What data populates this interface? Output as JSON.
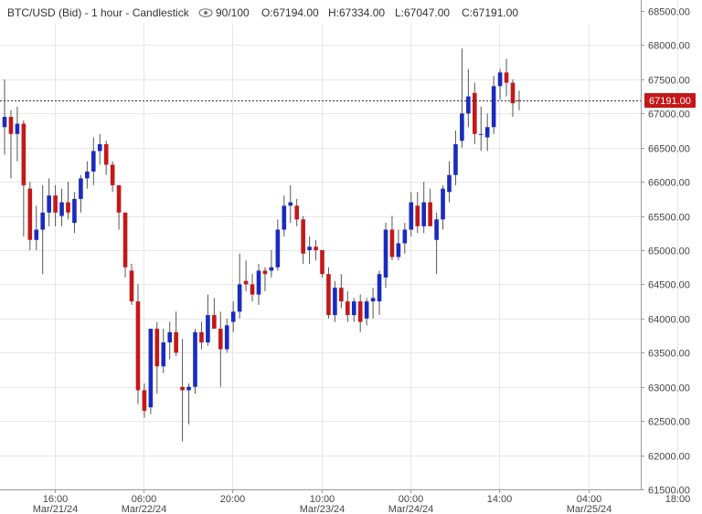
{
  "header": {
    "symbol": "BTC/USD (Bid) - 1 hour - Candlestick",
    "eye_icon": "eye-icon",
    "visibility": "90/100",
    "open": "O:67194.00",
    "high": "H:67334.00",
    "low": "L:67047.00",
    "close": "C:67191.00"
  },
  "current_price_label": "67191.00",
  "colors": {
    "up": "#1a2bbf",
    "down": "#c41818",
    "grid": "#e6e6e6",
    "price_tag": "#c41818",
    "axis_text": "#444444"
  },
  "chart_data": {
    "type": "candlestick",
    "y_axis": {
      "side": "right",
      "ylim": [
        61500,
        68500
      ],
      "ticks": [
        68500,
        68000,
        67500,
        67000,
        66500,
        66000,
        65500,
        65000,
        64500,
        64000,
        63500,
        63000,
        62500,
        62000,
        61500
      ],
      "tick_labels": [
        "68500.00",
        "68000.00",
        "67500.00",
        "67000.00",
        "66500.00",
        "66000.00",
        "65500.00",
        "65000.00",
        "64500.00",
        "64000.00",
        "63500.00",
        "63000.00",
        "62500.00",
        "62000.00",
        "61500.00"
      ]
    },
    "x_axis": {
      "ticks": [
        {
          "time": "16:00",
          "date": "Mar/21/24",
          "index": 4
        },
        {
          "time": "06:00",
          "date": "Mar/22/24",
          "index": 18
        },
        {
          "time": "20:00",
          "date": "",
          "index": 32
        },
        {
          "time": "10:00",
          "date": "Mar/23/24",
          "index": 46
        },
        {
          "time": "00:00",
          "date": "Mar/24/24",
          "index": 60
        },
        {
          "time": "14:00",
          "date": "",
          "index": 74
        },
        {
          "time": "04:00",
          "date": "Mar/25/24",
          "index": 88
        },
        {
          "time": "18:00",
          "date": "",
          "index": 102
        }
      ]
    },
    "current_price": 67191,
    "candles": [
      {
        "o": 66800,
        "h": 67500,
        "l": 66400,
        "c": 66950
      },
      {
        "o": 66950,
        "h": 67050,
        "l": 66050,
        "c": 66700
      },
      {
        "o": 66700,
        "h": 67100,
        "l": 66300,
        "c": 66850
      },
      {
        "o": 66850,
        "h": 66900,
        "l": 65200,
        "c": 65950
      },
      {
        "o": 65900,
        "h": 66000,
        "l": 65000,
        "c": 65150
      },
      {
        "o": 65150,
        "h": 65650,
        "l": 65000,
        "c": 65300
      },
      {
        "o": 65300,
        "h": 65950,
        "l": 64650,
        "c": 65550
      },
      {
        "o": 65550,
        "h": 66050,
        "l": 65350,
        "c": 65800
      },
      {
        "o": 65800,
        "h": 65950,
        "l": 65350,
        "c": 65550
      },
      {
        "o": 65500,
        "h": 65900,
        "l": 65350,
        "c": 65700
      },
      {
        "o": 65700,
        "h": 66000,
        "l": 65450,
        "c": 65550
      },
      {
        "o": 65400,
        "h": 65850,
        "l": 65250,
        "c": 65750
      },
      {
        "o": 65750,
        "h": 66100,
        "l": 65550,
        "c": 66050
      },
      {
        "o": 66050,
        "h": 66300,
        "l": 65900,
        "c": 66150
      },
      {
        "o": 66150,
        "h": 66650,
        "l": 65950,
        "c": 66450
      },
      {
        "o": 66450,
        "h": 66700,
        "l": 66250,
        "c": 66550
      },
      {
        "o": 66550,
        "h": 66600,
        "l": 66100,
        "c": 66250
      },
      {
        "o": 66250,
        "h": 66300,
        "l": 65850,
        "c": 65950
      },
      {
        "o": 65950,
        "h": 65950,
        "l": 65300,
        "c": 65550
      },
      {
        "o": 65550,
        "h": 65550,
        "l": 64600,
        "c": 64750
      },
      {
        "o": 64700,
        "h": 64800,
        "l": 64200,
        "c": 64250
      },
      {
        "o": 64250,
        "h": 64500,
        "l": 62750,
        "c": 62950
      },
      {
        "o": 62950,
        "h": 63050,
        "l": 62550,
        "c": 62650
      },
      {
        "o": 62700,
        "h": 63850,
        "l": 62600,
        "c": 63850
      },
      {
        "o": 63850,
        "h": 63950,
        "l": 62900,
        "c": 63300
      },
      {
        "o": 63300,
        "h": 63850,
        "l": 63200,
        "c": 63650
      },
      {
        "o": 63650,
        "h": 63950,
        "l": 63400,
        "c": 63800
      },
      {
        "o": 63800,
        "h": 64100,
        "l": 63450,
        "c": 63500
      },
      {
        "o": 63000,
        "h": 63700,
        "l": 62200,
        "c": 62950
      },
      {
        "o": 62950,
        "h": 63050,
        "l": 62450,
        "c": 63000
      },
      {
        "o": 63000,
        "h": 63850,
        "l": 62900,
        "c": 63800
      },
      {
        "o": 63800,
        "h": 63950,
        "l": 63550,
        "c": 63650
      },
      {
        "o": 63650,
        "h": 64350,
        "l": 63600,
        "c": 64050
      },
      {
        "o": 64050,
        "h": 64300,
        "l": 63850,
        "c": 63850
      },
      {
        "o": 63850,
        "h": 64100,
        "l": 63000,
        "c": 63550
      },
      {
        "o": 63550,
        "h": 64000,
        "l": 63500,
        "c": 63900
      },
      {
        "o": 63950,
        "h": 64250,
        "l": 63800,
        "c": 64100
      },
      {
        "o": 64100,
        "h": 64950,
        "l": 64000,
        "c": 64500
      },
      {
        "o": 64550,
        "h": 64850,
        "l": 64400,
        "c": 64500
      },
      {
        "o": 64500,
        "h": 64650,
        "l": 64250,
        "c": 64350
      },
      {
        "o": 64350,
        "h": 64800,
        "l": 64200,
        "c": 64700
      },
      {
        "o": 64700,
        "h": 64750,
        "l": 64400,
        "c": 64650
      },
      {
        "o": 64700,
        "h": 65000,
        "l": 64600,
        "c": 64750
      },
      {
        "o": 64750,
        "h": 65450,
        "l": 64700,
        "c": 65300
      },
      {
        "o": 65300,
        "h": 65800,
        "l": 65200,
        "c": 65650
      },
      {
        "o": 65650,
        "h": 65950,
        "l": 65400,
        "c": 65700
      },
      {
        "o": 65650,
        "h": 65750,
        "l": 65350,
        "c": 65450
      },
      {
        "o": 65450,
        "h": 65500,
        "l": 64800,
        "c": 64950
      },
      {
        "o": 65000,
        "h": 65200,
        "l": 64800,
        "c": 65050
      },
      {
        "o": 65050,
        "h": 65150,
        "l": 64850,
        "c": 65000
      },
      {
        "o": 65000,
        "h": 65000,
        "l": 64600,
        "c": 64650
      },
      {
        "o": 64650,
        "h": 64750,
        "l": 64000,
        "c": 64050
      },
      {
        "o": 64050,
        "h": 64550,
        "l": 63950,
        "c": 64450
      },
      {
        "o": 64450,
        "h": 64650,
        "l": 64150,
        "c": 64250
      },
      {
        "o": 64250,
        "h": 64400,
        "l": 63950,
        "c": 64050
      },
      {
        "o": 64050,
        "h": 64300,
        "l": 63950,
        "c": 64250
      },
      {
        "o": 64250,
        "h": 64350,
        "l": 63800,
        "c": 63950
      },
      {
        "o": 64000,
        "h": 64300,
        "l": 63900,
        "c": 64250
      },
      {
        "o": 64250,
        "h": 64450,
        "l": 64000,
        "c": 64300
      },
      {
        "o": 64250,
        "h": 64700,
        "l": 64050,
        "c": 64650
      },
      {
        "o": 64600,
        "h": 65400,
        "l": 64450,
        "c": 65300
      },
      {
        "o": 65300,
        "h": 65500,
        "l": 64850,
        "c": 64900
      },
      {
        "o": 64900,
        "h": 65300,
        "l": 64850,
        "c": 65100
      },
      {
        "o": 65100,
        "h": 65400,
        "l": 64950,
        "c": 65300
      },
      {
        "o": 65300,
        "h": 65850,
        "l": 65200,
        "c": 65700
      },
      {
        "o": 65650,
        "h": 65850,
        "l": 65250,
        "c": 65350
      },
      {
        "o": 65350,
        "h": 66000,
        "l": 65250,
        "c": 65700
      },
      {
        "o": 65700,
        "h": 65900,
        "l": 65350,
        "c": 65350
      },
      {
        "o": 65150,
        "h": 65550,
        "l": 64650,
        "c": 65450
      },
      {
        "o": 65450,
        "h": 65950,
        "l": 65300,
        "c": 65900
      },
      {
        "o": 65850,
        "h": 66300,
        "l": 65700,
        "c": 66100
      },
      {
        "o": 66100,
        "h": 66750,
        "l": 65950,
        "c": 66550
      },
      {
        "o": 66600,
        "h": 67950,
        "l": 66500,
        "c": 67000
      },
      {
        "o": 67000,
        "h": 67650,
        "l": 66800,
        "c": 67250
      },
      {
        "o": 67300,
        "h": 67450,
        "l": 66550,
        "c": 66700
      },
      {
        "o": 66700,
        "h": 67100,
        "l": 66450,
        "c": 66700
      },
      {
        "o": 66650,
        "h": 67000,
        "l": 66450,
        "c": 66800
      },
      {
        "o": 66800,
        "h": 67550,
        "l": 66700,
        "c": 67400
      },
      {
        "o": 67400,
        "h": 67650,
        "l": 67200,
        "c": 67600
      },
      {
        "o": 67600,
        "h": 67800,
        "l": 67250,
        "c": 67450
      },
      {
        "o": 67450,
        "h": 67500,
        "l": 66950,
        "c": 67150
      },
      {
        "o": 67194,
        "h": 67334,
        "l": 67047,
        "c": 67191
      }
    ]
  }
}
